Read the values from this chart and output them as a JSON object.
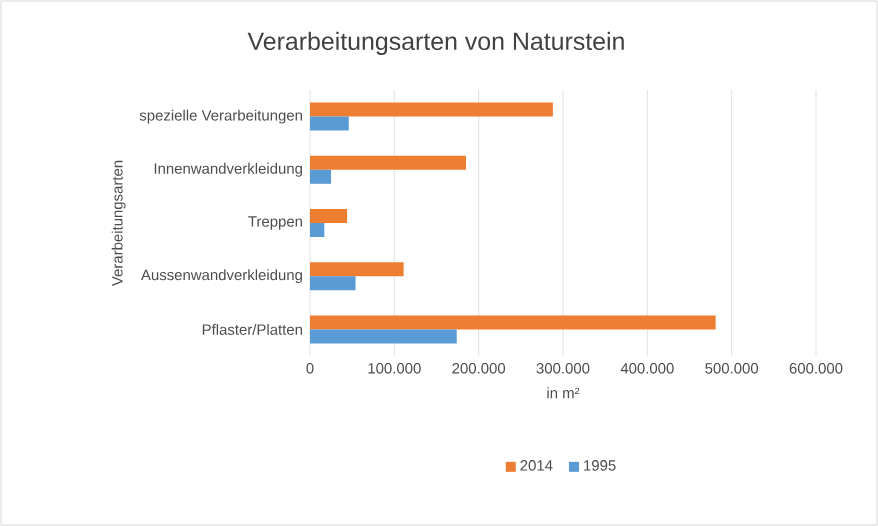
{
  "chart_data": {
    "type": "bar",
    "orientation": "horizontal",
    "title": "Verarbeitungsarten von Naturstein",
    "xlabel": "in m²",
    "ylabel": "Verarbeitungsarten",
    "categories": [
      "spezielle Verarbeitungen",
      "Innenwandverkleidung",
      "Treppen",
      "Aussenwandverkleidung",
      "Pflaster/Platten"
    ],
    "series": [
      {
        "name": "2014",
        "color": "#ed7d31",
        "values": [
          288000,
          185000,
          44000,
          111000,
          481000
        ]
      },
      {
        "name": "1995",
        "color": "#5b9bd5",
        "values": [
          46000,
          25000,
          17000,
          54000,
          174000
        ]
      }
    ],
    "xlim": [
      0,
      600000
    ],
    "xticks": [
      0,
      {
        "value": 100000,
        "label": "100.000"
      },
      {
        "value": 200000,
        "label": "200.000"
      },
      {
        "value": 300000,
        "label": "300.000"
      },
      {
        "value": 400000,
        "label": "400.000"
      },
      {
        "value": 500000,
        "label": "500.000"
      },
      {
        "value": 600000,
        "label": "600.000"
      }
    ],
    "grid": "x",
    "legend": "bottom"
  }
}
